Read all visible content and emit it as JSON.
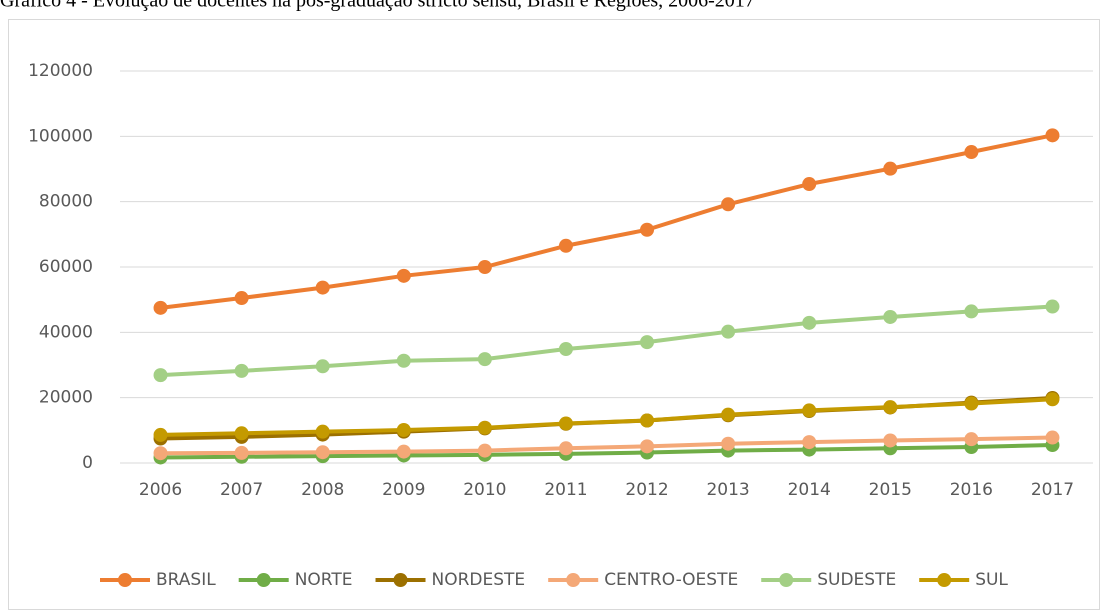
{
  "chart_data": {
    "type": "line",
    "title": "Gráfico 4 - Evolução de docentes na pós-graduação stricto sensu, Brasil e Regiões, 2006-2017",
    "categories": [
      "2006",
      "2007",
      "2008",
      "2009",
      "2010",
      "2011",
      "2012",
      "2013",
      "2014",
      "2015",
      "2016",
      "2017"
    ],
    "series": [
      {
        "name": "BRASIL",
        "color": "#ed7d31",
        "values": [
          47500,
          50500,
          53700,
          57300,
          60000,
          66500,
          71400,
          79200,
          85400,
          90100,
          95200,
          100300
        ]
      },
      {
        "name": "NORTE",
        "color": "#70ad47",
        "values": [
          1700,
          1900,
          2100,
          2300,
          2500,
          2800,
          3200,
          3800,
          4100,
          4500,
          4900,
          5500
        ]
      },
      {
        "name": "NORDESTE",
        "color": "#9c7000",
        "values": [
          7500,
          8000,
          8700,
          9600,
          10600,
          12000,
          13000,
          14600,
          15900,
          17000,
          18500,
          19900
        ]
      },
      {
        "name": "CENTRO-OESTE",
        "color": "#f4a877",
        "values": [
          3000,
          3100,
          3300,
          3500,
          3800,
          4500,
          5100,
          5900,
          6400,
          6900,
          7300,
          7800
        ]
      },
      {
        "name": "SUDESTE",
        "color": "#a3cf85",
        "values": [
          26900,
          28200,
          29600,
          31300,
          31800,
          34900,
          37000,
          40200,
          42900,
          44700,
          46400,
          47900
        ]
      },
      {
        "name": "SUL",
        "color": "#c49a00",
        "values": [
          8600,
          9100,
          9600,
          10100,
          10800,
          12100,
          13000,
          14800,
          16100,
          17100,
          18200,
          19500
        ]
      }
    ],
    "ylim": [
      0,
      120000
    ],
    "yticks": [
      0,
      20000,
      40000,
      60000,
      80000,
      100000,
      120000
    ],
    "grid": true,
    "legend": "bottom"
  }
}
